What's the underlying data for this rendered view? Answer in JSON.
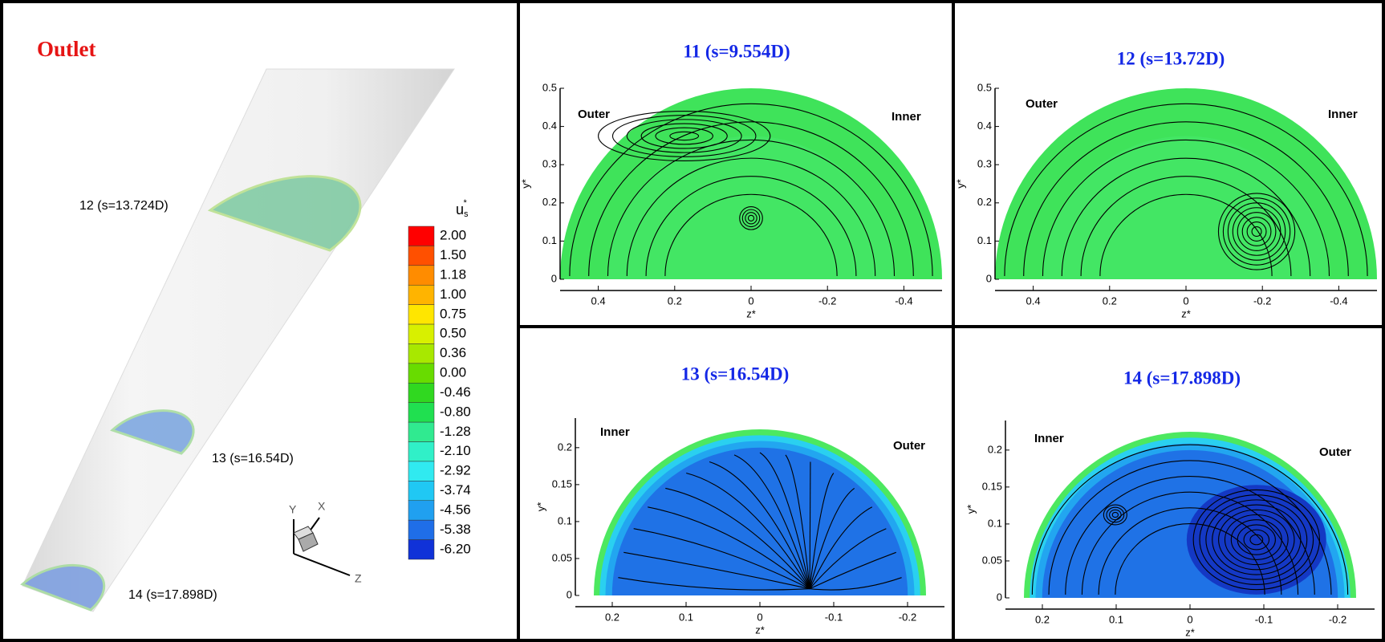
{
  "left": {
    "title": "Outlet",
    "sections": [
      "12 (s=13.724D)",
      "13 (s=16.54D)",
      "14 (s=17.898D)"
    ],
    "axes": [
      "Y",
      "X",
      "Z"
    ],
    "colorbar": {
      "title": {
        "base": "u",
        "sub": "s",
        "sup": "*"
      },
      "labels": [
        "2.00",
        "1.50",
        "1.18",
        "1.00",
        "0.75",
        "0.50",
        "0.36",
        "0.00",
        "-0.46",
        "-0.80",
        "-1.28",
        "-2.10",
        "-2.92",
        "-3.74",
        "-4.56",
        "-5.38",
        "-6.20"
      ],
      "colors": [
        "#ff0000",
        "#ff5000",
        "#ff8c00",
        "#ffb400",
        "#ffe600",
        "#d8f000",
        "#a8e800",
        "#68dc00",
        "#30d820",
        "#20e050",
        "#30ea90",
        "#30f0c8",
        "#30eaf0",
        "#20c8f4",
        "#20a0f0",
        "#1f6ee8",
        "#1032d8"
      ]
    }
  },
  "panels": [
    {
      "title": "11 (s=9.554D)",
      "xlabel": "z*",
      "ylabel": "y*",
      "labels": [
        "Outer",
        "Inner"
      ],
      "xlim": [
        0.5,
        -0.5
      ],
      "ylim": [
        0,
        0.5
      ],
      "xticks": [
        0.4,
        0.2,
        0,
        -0.2,
        -0.4
      ],
      "yticks": [
        0,
        0.1,
        0.2,
        0.3,
        0.4,
        0.5
      ]
    },
    {
      "title": "12 (s=13.72D)",
      "xlabel": "z*",
      "ylabel": "y*",
      "labels": [
        "Outer",
        "Inner"
      ],
      "xlim": [
        0.5,
        -0.5
      ],
      "ylim": [
        0,
        0.5
      ],
      "xticks": [
        0.4,
        0.2,
        0,
        -0.2,
        -0.4
      ],
      "yticks": [
        0,
        0.1,
        0.2,
        0.3,
        0.4,
        0.5
      ]
    },
    {
      "title": "13 (s=16.54D)",
      "xlabel": "z*",
      "ylabel": "y*",
      "labels": [
        "Inner",
        "Outer"
      ],
      "xlim": [
        0.25,
        -0.25
      ],
      "ylim": [
        0,
        0.24
      ],
      "xticks": [
        0.2,
        0.1,
        0,
        -0.1,
        -0.2
      ],
      "yticks": [
        0,
        0.05,
        0.1,
        0.15,
        0.2
      ]
    },
    {
      "title": "14 (s=17.898D)",
      "xlabel": "z*",
      "ylabel": "y*",
      "labels": [
        "Inner",
        "Outer"
      ],
      "xlim": [
        0.25,
        -0.25
      ],
      "ylim": [
        0,
        0.24
      ],
      "xticks": [
        0.2,
        0.1,
        0,
        -0.1,
        -0.2
      ],
      "yticks": [
        0,
        0.05,
        0.1,
        0.15,
        0.2
      ]
    }
  ]
}
